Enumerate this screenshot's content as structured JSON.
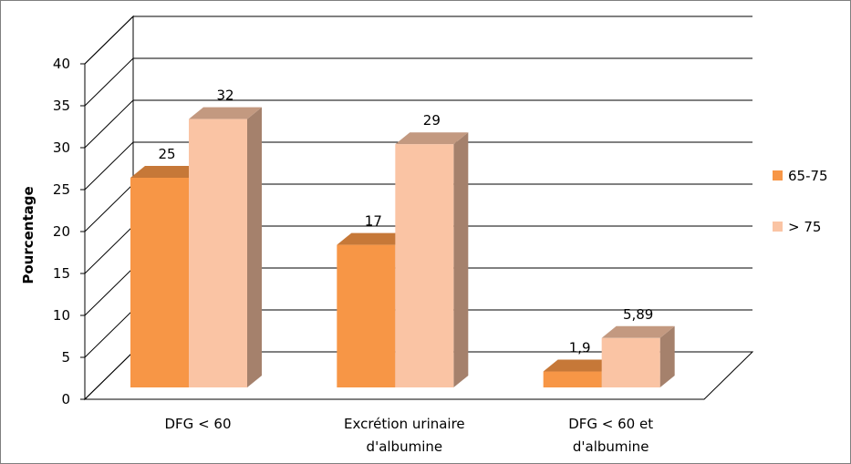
{
  "chart_data": {
    "type": "bar",
    "title": "",
    "xlabel": "",
    "ylabel": "Pourcentage",
    "ylim": [
      0,
      40
    ],
    "yticks": [
      "0",
      "5",
      "10",
      "15",
      "20",
      "25",
      "30",
      "35",
      "40"
    ],
    "categories": [
      [
        "DFG < 60"
      ],
      [
        "Excrétion urinaire",
        "d'albumine"
      ],
      [
        "DFG < 60 et",
        "d'albumine"
      ]
    ],
    "series": [
      {
        "name": "65-75",
        "values": [
          25,
          17,
          1.9
        ],
        "labels": [
          "25",
          "17",
          "1,9"
        ],
        "color": "#f79646"
      },
      {
        "name": "> 75",
        "values": [
          32,
          29,
          5.89
        ],
        "labels": [
          "32",
          "29",
          "5,89"
        ],
        "color": "#fac4a4"
      }
    ],
    "grid": true,
    "legend_position": "right",
    "style": "3d"
  }
}
